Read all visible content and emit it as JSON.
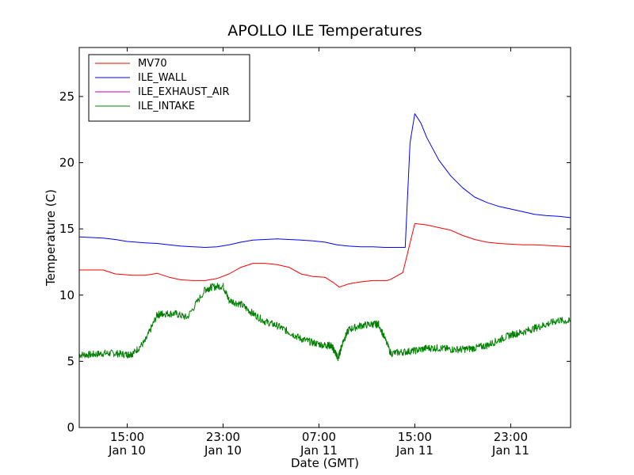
{
  "chart_data": {
    "type": "line",
    "title": "APOLLO ILE Temperatures",
    "xlabel": "Date (GMT)",
    "ylabel": "Temperature (C)",
    "ylim": [
      0,
      28.7
    ],
    "yticks": [
      0,
      5,
      10,
      15,
      20,
      25
    ],
    "xlim_hours": [
      11.0,
      52.0
    ],
    "xticks": [
      {
        "hour": 15,
        "time": "15:00",
        "date": "Jan 10"
      },
      {
        "hour": 23,
        "time": "23:00",
        "date": "Jan 10"
      },
      {
        "hour": 31,
        "time": "07:00",
        "date": "Jan 11"
      },
      {
        "hour": 39,
        "time": "15:00",
        "date": "Jan 11"
      },
      {
        "hour": 47,
        "time": "23:00",
        "date": "Jan 11"
      }
    ],
    "grid": false,
    "legend_position": "top-left",
    "series": [
      {
        "name": "MV70",
        "color": "#ff0000",
        "x": [
          11.0,
          12.0,
          13.0,
          14.0,
          15.5,
          16.5,
          17.5,
          18.5,
          19.5,
          20.5,
          21.5,
          22.5,
          23.5,
          24.5,
          25.5,
          26.5,
          27.5,
          28.5,
          29.5,
          30.5,
          31.5,
          32.2,
          32.7,
          33.5,
          34.5,
          35.5,
          36.5,
          36.7,
          37.0,
          38.0,
          39.0,
          40.0,
          41.0,
          42.0,
          43.0,
          44.0,
          45.0,
          46.0,
          47.0,
          48.0,
          49.0,
          50.0,
          51.0,
          52.0
        ],
        "y": [
          11.9,
          11.9,
          11.9,
          11.6,
          11.5,
          11.5,
          11.65,
          11.35,
          11.15,
          11.1,
          11.1,
          11.25,
          11.6,
          12.1,
          12.4,
          12.4,
          12.3,
          12.1,
          11.6,
          11.4,
          11.35,
          10.95,
          10.6,
          10.85,
          11.0,
          11.1,
          11.1,
          11.1,
          11.2,
          11.7,
          15.4,
          15.3,
          15.1,
          14.9,
          14.5,
          14.2,
          14.0,
          13.9,
          13.85,
          13.8,
          13.8,
          13.75,
          13.7,
          13.65
        ]
      },
      {
        "name": "ILE_WALL",
        "color": "#0000ff",
        "x": [
          11.0,
          12.0,
          13.0,
          14.0,
          15.0,
          16.5,
          17.5,
          18.5,
          19.5,
          20.5,
          21.5,
          22.5,
          23.5,
          24.5,
          25.5,
          26.5,
          27.5,
          28.5,
          29.5,
          30.5,
          31.5,
          32.5,
          33.5,
          34.5,
          35.5,
          36.5,
          37.5,
          38.2,
          38.6,
          39.0,
          39.5,
          40.0,
          41.0,
          42.0,
          43.0,
          44.0,
          45.0,
          46.0,
          47.0,
          48.0,
          49.0,
          50.0,
          51.0,
          52.0
        ],
        "y": [
          14.4,
          14.35,
          14.3,
          14.2,
          14.05,
          13.95,
          13.9,
          13.8,
          13.7,
          13.65,
          13.6,
          13.65,
          13.8,
          14.0,
          14.15,
          14.2,
          14.25,
          14.2,
          14.15,
          14.1,
          14.0,
          13.8,
          13.7,
          13.65,
          13.65,
          13.6,
          13.6,
          13.6,
          21.5,
          23.7,
          23.0,
          21.9,
          20.2,
          19.0,
          18.1,
          17.4,
          17.0,
          16.7,
          16.5,
          16.3,
          16.1,
          16.0,
          15.95,
          15.85
        ]
      },
      {
        "name": "ILE_EXHAUST_AIR",
        "color": "#bf00bf",
        "x": [],
        "y": []
      },
      {
        "name": "ILE_INTAKE",
        "color": "#008000",
        "x": [
          11.0,
          12.0,
          13.0,
          14.0,
          15.0,
          15.5,
          16.5,
          17.5,
          18.0,
          19.0,
          20.0,
          21.5,
          22.0,
          23.0,
          23.5,
          24.5,
          25.5,
          26.5,
          27.5,
          28.5,
          29.5,
          30.5,
          31.5,
          32.0,
          32.3,
          32.6,
          33.0,
          33.5,
          34.5,
          35.5,
          36.0,
          37.0,
          38.0,
          39.0,
          40.0,
          41.0,
          42.0,
          43.0,
          44.0,
          45.0,
          46.0,
          47.0,
          48.0,
          49.0,
          50.0,
          51.0,
          52.0
        ],
        "y": [
          5.5,
          5.5,
          5.6,
          5.6,
          5.5,
          5.6,
          6.5,
          8.5,
          8.6,
          8.6,
          8.3,
          10.4,
          10.6,
          10.7,
          9.6,
          9.3,
          8.6,
          8.0,
          7.7,
          7.2,
          6.7,
          6.4,
          6.2,
          6.2,
          5.8,
          5.2,
          6.5,
          7.4,
          7.7,
          7.8,
          7.8,
          5.6,
          5.7,
          5.8,
          6.0,
          6.0,
          5.9,
          5.9,
          6.0,
          6.2,
          6.6,
          7.0,
          7.2,
          7.5,
          7.8,
          8.1,
          8.0
        ]
      }
    ]
  }
}
